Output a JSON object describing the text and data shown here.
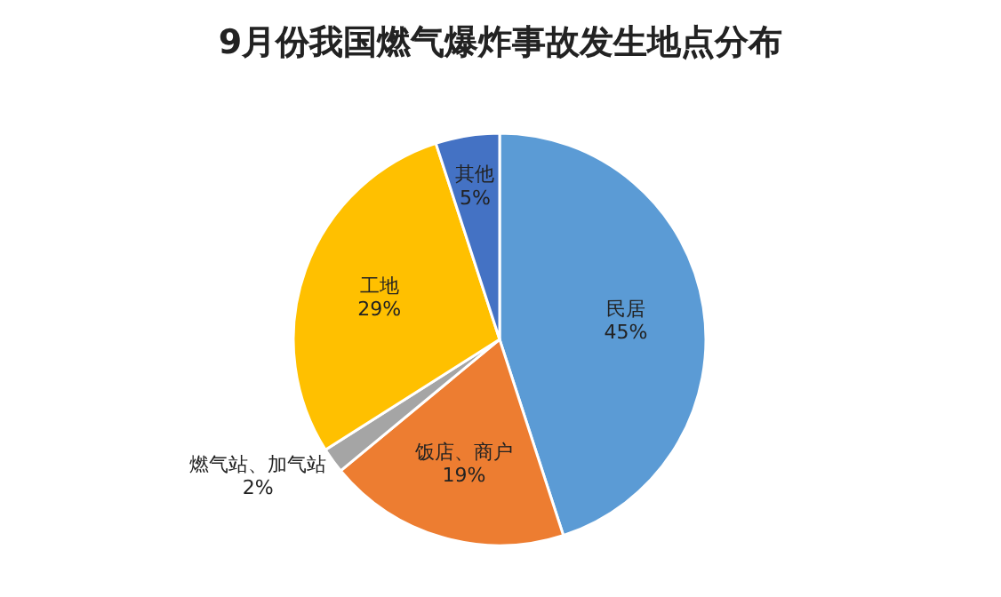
{
  "chart_data": {
    "type": "pie",
    "title": "9月份我国燃气爆炸事故发生地点分布",
    "categories": [
      "民居",
      "饭店、商户",
      "燃气站、加气站",
      "工地",
      "其他"
    ],
    "values": [
      45,
      19,
      2,
      29,
      5
    ],
    "value_labels": [
      "45%",
      "19%",
      "2%",
      "29%",
      "5%"
    ],
    "colors": [
      "#5b9bd5",
      "#ed7d31",
      "#a5a5a5",
      "#ffc000",
      "#4472c4"
    ]
  }
}
